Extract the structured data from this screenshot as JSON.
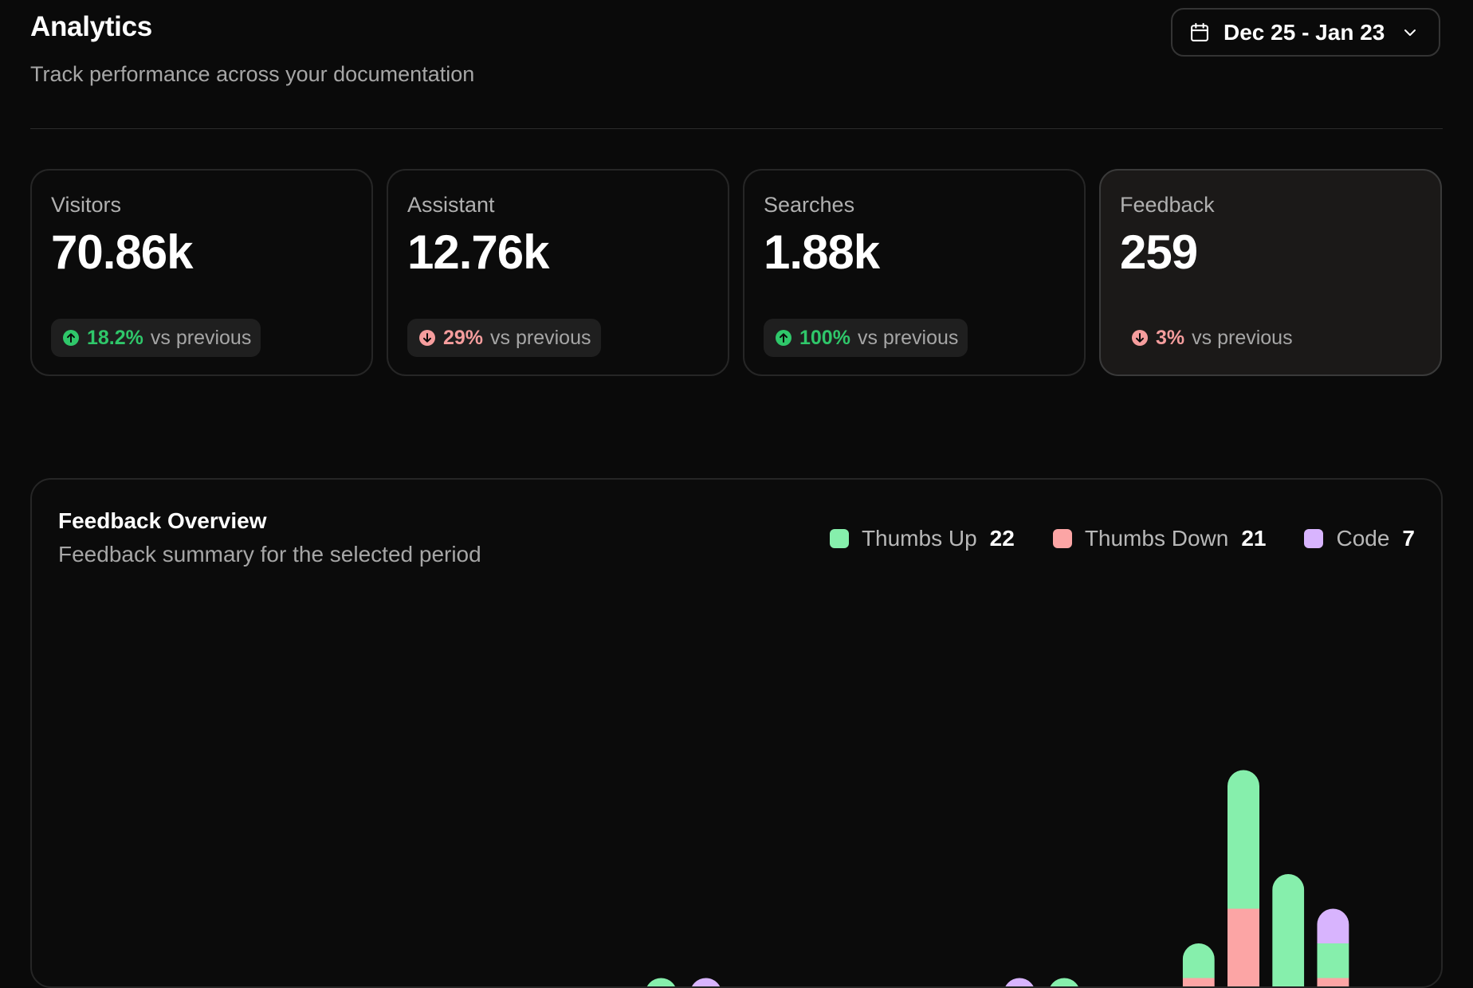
{
  "header": {
    "title": "Analytics",
    "subtitle": "Track performance across your documentation",
    "date_range": "Dec 25 - Jan 23",
    "date_icon": "calendar-icon",
    "dropdown_icon": "chevron-down-icon"
  },
  "stats": [
    {
      "label": "Visitors",
      "value": "70.86k",
      "delta": "18.2%",
      "direction": "up",
      "suffix": "vs previous",
      "active": false
    },
    {
      "label": "Assistant",
      "value": "12.76k",
      "delta": "29%",
      "direction": "down",
      "suffix": "vs previous",
      "active": false
    },
    {
      "label": "Searches",
      "value": "1.88k",
      "delta": "100%",
      "direction": "up",
      "suffix": "vs previous",
      "active": false
    },
    {
      "label": "Feedback",
      "value": "259",
      "delta": "3%",
      "direction": "down",
      "suffix": "vs previous",
      "active": true
    }
  ],
  "colors": {
    "up": "#2fc76a",
    "down": "#f59d9d",
    "thumbs_up": "#86efac",
    "thumbs_down": "#fca5a5",
    "code": "#d8b4fe"
  },
  "feedback_overview": {
    "title": "Feedback Overview",
    "subtitle": "Feedback summary for the selected period",
    "legend": [
      {
        "name": "Thumbs Up",
        "count": "22",
        "color": "#86efac"
      },
      {
        "name": "Thumbs Down",
        "count": "21",
        "color": "#fca5a5"
      },
      {
        "name": "Code",
        "count": "7",
        "color": "#d8b4fe"
      }
    ]
  },
  "chart_data": {
    "type": "bar",
    "stacked": true,
    "series": [
      {
        "name": "Thumbs Up",
        "color": "#86efac",
        "values": [
          0,
          0,
          0,
          0,
          0,
          0,
          0,
          0,
          0,
          0,
          0,
          0,
          1,
          0,
          0,
          0,
          0,
          0,
          0,
          0,
          0,
          1,
          0,
          0,
          1,
          4,
          4,
          1,
          0,
          0
        ]
      },
      {
        "name": "Thumbs Down",
        "color": "#fca5a5",
        "values": [
          0,
          0,
          0,
          0,
          0,
          0,
          0,
          0,
          0,
          0,
          0,
          0,
          0,
          0,
          0,
          0,
          0,
          0,
          0,
          0,
          0,
          0,
          0,
          0,
          1,
          3,
          0,
          1,
          0,
          0
        ]
      },
      {
        "name": "Code",
        "color": "#d8b4fe",
        "values": [
          0,
          0,
          0,
          0,
          0,
          0,
          0,
          0,
          0,
          0,
          0,
          0,
          0,
          1,
          0,
          0,
          0,
          0,
          0,
          0,
          1,
          0,
          0,
          0,
          0,
          0,
          0,
          1,
          0,
          0
        ]
      }
    ],
    "grid": false,
    "legend_position": "top-right"
  }
}
